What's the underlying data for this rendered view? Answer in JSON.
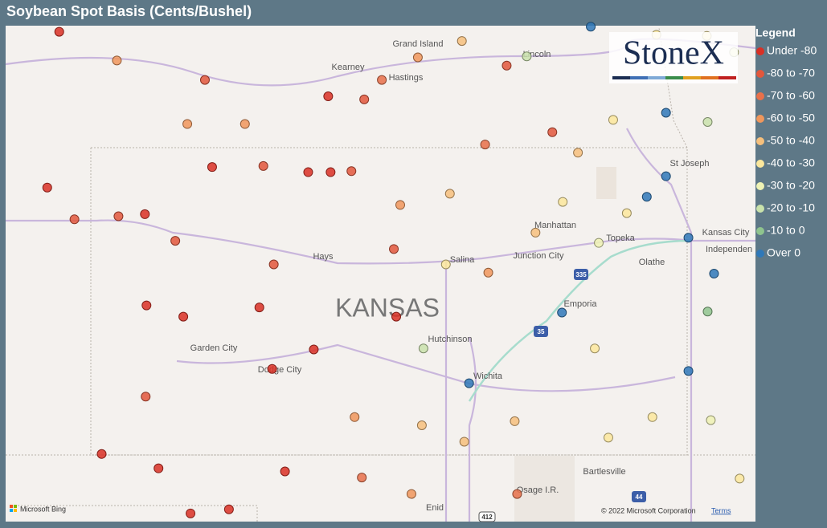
{
  "title": "Soybean Spot Basis (Cents/Bushel)",
  "logo": "StoneX",
  "map_labels": [
    "Grand Island",
    "Kearney",
    "Hastings",
    "Lincoln",
    "St Joseph",
    "Kansas City",
    "Independen",
    "Topeka",
    "Olathe",
    "Manhattan",
    "Junction City",
    "Salina",
    "Hays",
    "KANSAS",
    "Emporia",
    "Hutchinson",
    "Wichita",
    "Garden City",
    "Dodge City",
    "Bartlesville",
    "Osage I.R.",
    "Enid"
  ],
  "shields": [
    "335",
    "35",
    "44",
    "412"
  ],
  "attribution": {
    "provider": "Microsoft Bing",
    "copyright": "© 2022 Microsoft Corporation",
    "terms": "Terms"
  },
  "legend": {
    "title": "Legend",
    "items": [
      {
        "label": "Under -80",
        "color": "#d93025",
        "min": null,
        "max": -80
      },
      {
        "label": "-80 to -70",
        "color": "#e2573c",
        "min": -80,
        "max": -70
      },
      {
        "label": "-70 to -60",
        "color": "#e8704a",
        "min": -70,
        "max": -60
      },
      {
        "label": "-60 to -50",
        "color": "#f0975c",
        "min": -60,
        "max": -50
      },
      {
        "label": "-50 to -40",
        "color": "#f6c07c",
        "min": -50,
        "max": -40
      },
      {
        "label": "-40 to -30",
        "color": "#fbe79c",
        "min": -40,
        "max": -30
      },
      {
        "label": "-30 to -20",
        "color": "#eef2b4",
        "min": -30,
        "max": -20
      },
      {
        "label": "-20 to -10",
        "color": "#c9e2ab",
        "min": -20,
        "max": -10
      },
      {
        "label": "-10 to 0",
        "color": "#8fc48e",
        "min": -10,
        "max": 0
      },
      {
        "label": "Over 0",
        "color": "#2f78b8",
        "min": 0,
        "max": null
      }
    ]
  },
  "points": [
    {
      "lon": -102.44,
      "lat": 41.13,
      "basis": -85
    },
    {
      "lon": -101.72,
      "lat": 40.85,
      "basis": -55
    },
    {
      "lon": -100.62,
      "lat": 40.66,
      "basis": -75
    },
    {
      "lon": -102.59,
      "lat": 39.61,
      "basis": -85
    },
    {
      "lon": -102.25,
      "lat": 39.3,
      "basis": -78
    },
    {
      "lon": -101.7,
      "lat": 39.33,
      "basis": -78
    },
    {
      "lon": -101.37,
      "lat": 39.35,
      "basis": -85
    },
    {
      "lon": -100.99,
      "lat": 39.09,
      "basis": -75
    },
    {
      "lon": -100.53,
      "lat": 39.81,
      "basis": -85
    },
    {
      "lon": -99.89,
      "lat": 39.82,
      "basis": -75
    },
    {
      "lon": -99.33,
      "lat": 39.76,
      "basis": -82
    },
    {
      "lon": -99.05,
      "lat": 39.76,
      "basis": -82
    },
    {
      "lon": -98.79,
      "lat": 39.77,
      "basis": -75
    },
    {
      "lon": -99.08,
      "lat": 40.5,
      "basis": -82
    },
    {
      "lon": -98.63,
      "lat": 40.47,
      "basis": -75
    },
    {
      "lon": -98.41,
      "lat": 40.66,
      "basis": -65
    },
    {
      "lon": -97.96,
      "lat": 40.88,
      "basis": -55
    },
    {
      "lon": -97.41,
      "lat": 41.04,
      "basis": -45
    },
    {
      "lon": -96.6,
      "lat": 40.89,
      "basis": -15
    },
    {
      "lon": -96.85,
      "lat": 40.8,
      "basis": -75
    },
    {
      "lon": -95.8,
      "lat": 41.18,
      "basis": 5
    },
    {
      "lon": -94.98,
      "lat": 41.1,
      "basis": -35
    },
    {
      "lon": -94.35,
      "lat": 41.09,
      "basis": -35
    },
    {
      "lon": -94.01,
      "lat": 40.93,
      "basis": -25
    },
    {
      "lon": -94.86,
      "lat": 40.34,
      "basis": 5
    },
    {
      "lon": -94.34,
      "lat": 40.25,
      "basis": -15
    },
    {
      "lon": -94.86,
      "lat": 39.72,
      "basis": 5
    },
    {
      "lon": -95.1,
      "lat": 39.52,
      "basis": 5
    },
    {
      "lon": -94.58,
      "lat": 39.12,
      "basis": 5
    },
    {
      "lon": -94.26,
      "lat": 38.77,
      "basis": 5
    },
    {
      "lon": -96.16,
      "lat": 38.39,
      "basis": 5
    },
    {
      "lon": -97.32,
      "lat": 37.7,
      "basis": 5
    },
    {
      "lon": -94.58,
      "lat": 37.82,
      "basis": 5
    },
    {
      "lon": -94.34,
      "lat": 38.4,
      "basis": -5
    },
    {
      "lon": -97.89,
      "lat": 38.04,
      "basis": -15
    },
    {
      "lon": -96.15,
      "lat": 39.47,
      "basis": -35
    },
    {
      "lon": -95.7,
      "lat": 39.07,
      "basis": -25
    },
    {
      "lon": -95.75,
      "lat": 38.04,
      "basis": -35
    },
    {
      "lon": -95.03,
      "lat": 37.37,
      "basis": -35
    },
    {
      "lon": -95.58,
      "lat": 37.17,
      "basis": -35
    },
    {
      "lon": -94.3,
      "lat": 37.34,
      "basis": -25
    },
    {
      "lon": -93.94,
      "lat": 36.77,
      "basis": -35
    },
    {
      "lon": -101.35,
      "lat": 38.46,
      "basis": -85
    },
    {
      "lon": -100.89,
      "lat": 38.35,
      "basis": -80
    },
    {
      "lon": -99.94,
      "lat": 38.44,
      "basis": -85
    },
    {
      "lon": -99.78,
      "lat": 37.84,
      "basis": -85
    },
    {
      "lon": -101.36,
      "lat": 37.57,
      "basis": -75
    },
    {
      "lon": -101.91,
      "lat": 37.01,
      "basis": -85
    },
    {
      "lon": -101.2,
      "lat": 36.87,
      "basis": -82
    },
    {
      "lon": -100.32,
      "lat": 36.47,
      "basis": -82
    },
    {
      "lon": -100.8,
      "lat": 36.43,
      "basis": -82
    },
    {
      "lon": -99.62,
      "lat": 36.84,
      "basis": -82
    },
    {
      "lon": -98.75,
      "lat": 37.37,
      "basis": -55
    },
    {
      "lon": -98.66,
      "lat": 36.78,
      "basis": -65
    },
    {
      "lon": -97.91,
      "lat": 37.29,
      "basis": -45
    },
    {
      "lon": -97.38,
      "lat": 37.13,
      "basis": -45
    },
    {
      "lon": -96.75,
      "lat": 37.33,
      "basis": -45
    },
    {
      "lon": -97.08,
      "lat": 38.78,
      "basis": -55
    },
    {
      "lon": -97.12,
      "lat": 40.03,
      "basis": -65
    },
    {
      "lon": -97.56,
      "lat": 39.55,
      "basis": -45
    },
    {
      "lon": -98.18,
      "lat": 39.44,
      "basis": -55
    },
    {
      "lon": -98.26,
      "lat": 39.01,
      "basis": -75
    },
    {
      "lon": -98.23,
      "lat": 38.35,
      "basis": -82
    },
    {
      "lon": -99.26,
      "lat": 38.03,
      "basis": -85
    },
    {
      "lon": -99.76,
      "lat": 38.86,
      "basis": -78
    },
    {
      "lon": -96.49,
      "lat": 39.17,
      "basis": -45
    },
    {
      "lon": -96.28,
      "lat": 40.15,
      "basis": -75
    },
    {
      "lon": -95.96,
      "lat": 39.95,
      "basis": -45
    },
    {
      "lon": -95.52,
      "lat": 40.27,
      "basis": -35
    },
    {
      "lon": -96.72,
      "lat": 36.62,
      "basis": -65
    },
    {
      "lon": -98.04,
      "lat": 36.62,
      "basis": -55
    },
    {
      "lon": -100.12,
      "lat": 40.23,
      "basis": -55
    },
    {
      "lon": -100.84,
      "lat": 40.23,
      "basis": -55
    },
    {
      "lon": -95.35,
      "lat": 39.36,
      "basis": -35
    },
    {
      "lon": -97.61,
      "lat": 38.86,
      "basis": -35
    }
  ]
}
